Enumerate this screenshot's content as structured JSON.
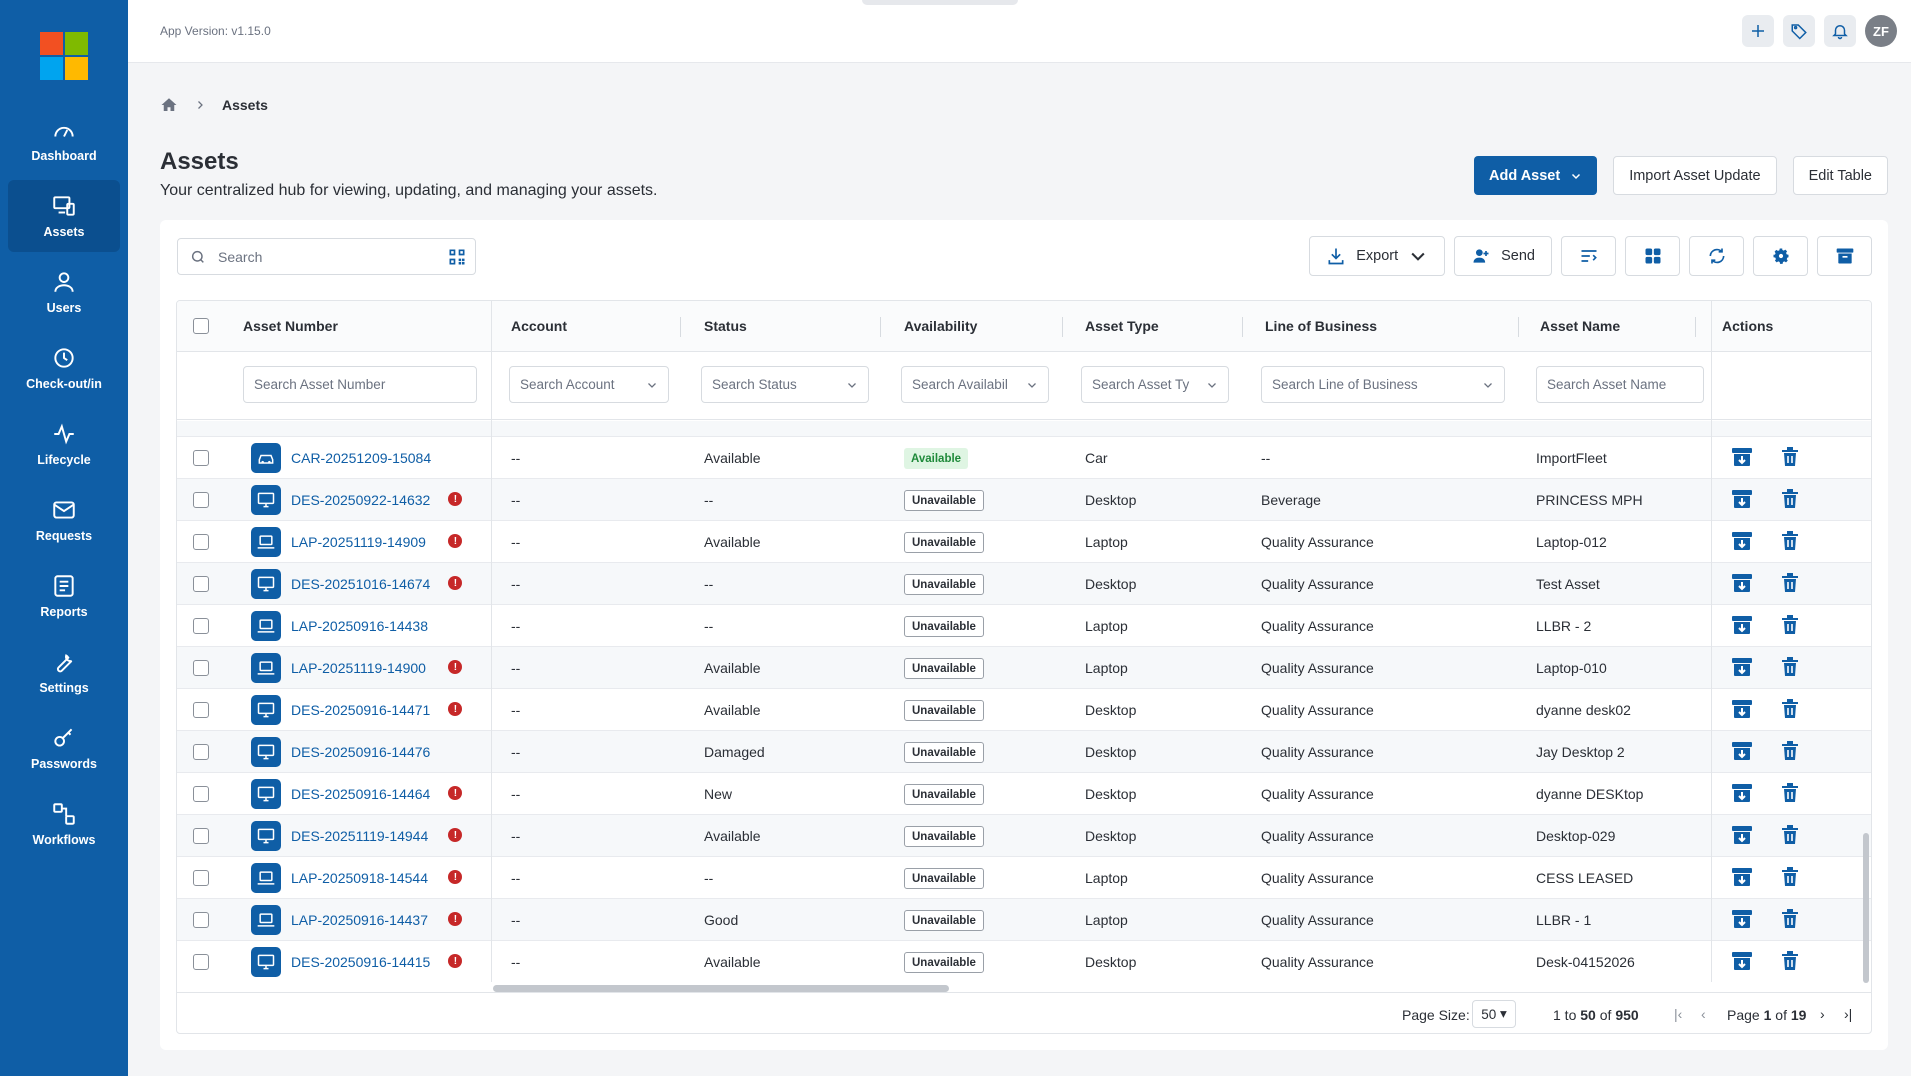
{
  "app": {
    "version": "App Version: v1.15.0",
    "user_initials": "ZF"
  },
  "sidebar": {
    "items": [
      {
        "label": "Dashboard",
        "icon": "dashboard-icon"
      },
      {
        "label": "Assets",
        "icon": "assets-icon",
        "active": true
      },
      {
        "label": "Users",
        "icon": "users-icon"
      },
      {
        "label": "Check-out/in",
        "icon": "clock-icon"
      },
      {
        "label": "Lifecycle",
        "icon": "pulse-icon"
      },
      {
        "label": "Requests",
        "icon": "mail-icon"
      },
      {
        "label": "Reports",
        "icon": "report-icon"
      },
      {
        "label": "Settings",
        "icon": "wrench-icon"
      },
      {
        "label": "Passwords",
        "icon": "key-icon"
      },
      {
        "label": "Workflows",
        "icon": "workflow-icon"
      }
    ]
  },
  "breadcrumb": {
    "current": "Assets"
  },
  "header": {
    "title": "Assets",
    "subtitle": "Your centralized hub for viewing, updating, and managing your assets.",
    "add_asset": "Add Asset",
    "import_update": "Import Asset Update",
    "edit_table": "Edit Table"
  },
  "toolbar": {
    "search_placeholder": "Search",
    "export": "Export",
    "send": "Send"
  },
  "table": {
    "columns": [
      "Asset Number",
      "Account",
      "Status",
      "Availability",
      "Asset Type",
      "Line of Business",
      "Asset Name",
      "Actions"
    ],
    "filters": [
      "Search Asset Number",
      "Search Account",
      "Search Status",
      "Search Availabil",
      "Search Asset Ty",
      "Search Line of Business",
      "Search Asset Name"
    ],
    "rows": [
      {
        "number": "CAR-20251209-15084",
        "type_icon": "car",
        "warn": false,
        "account": "--",
        "status": "Available",
        "availability": "Available",
        "asset_type": "Car",
        "lob": "--",
        "name": "ImportFleet"
      },
      {
        "number": "DES-20250922-14632",
        "type_icon": "desktop",
        "warn": true,
        "account": "--",
        "status": "--",
        "availability": "Unavailable",
        "asset_type": "Desktop",
        "lob": "Beverage",
        "name": "PRINCESS MPH"
      },
      {
        "number": "LAP-20251119-14909",
        "type_icon": "laptop",
        "warn": true,
        "account": "--",
        "status": "Available",
        "availability": "Unavailable",
        "asset_type": "Laptop",
        "lob": "Quality Assurance",
        "name": "Laptop-012"
      },
      {
        "number": "DES-20251016-14674",
        "type_icon": "desktop",
        "warn": true,
        "account": "--",
        "status": "--",
        "availability": "Unavailable",
        "asset_type": "Desktop",
        "lob": "Quality Assurance",
        "name": "Test Asset"
      },
      {
        "number": "LAP-20250916-14438",
        "type_icon": "laptop",
        "warn": false,
        "account": "--",
        "status": "--",
        "availability": "Unavailable",
        "asset_type": "Laptop",
        "lob": "Quality Assurance",
        "name": "LLBR - 2"
      },
      {
        "number": "LAP-20251119-14900",
        "type_icon": "laptop",
        "warn": true,
        "account": "--",
        "status": "Available",
        "availability": "Unavailable",
        "asset_type": "Laptop",
        "lob": "Quality Assurance",
        "name": "Laptop-010"
      },
      {
        "number": "DES-20250916-14471",
        "type_icon": "desktop",
        "warn": true,
        "account": "--",
        "status": "Available",
        "availability": "Unavailable",
        "asset_type": "Desktop",
        "lob": "Quality Assurance",
        "name": "dyanne desk02"
      },
      {
        "number": "DES-20250916-14476",
        "type_icon": "desktop",
        "warn": false,
        "account": "--",
        "status": "Damaged",
        "availability": "Unavailable",
        "asset_type": "Desktop",
        "lob": "Quality Assurance",
        "name": "Jay Desktop 2"
      },
      {
        "number": "DES-20250916-14464",
        "type_icon": "desktop",
        "warn": true,
        "account": "--",
        "status": "New",
        "availability": "Unavailable",
        "asset_type": "Desktop",
        "lob": "Quality Assurance",
        "name": "dyanne DESKtop"
      },
      {
        "number": "DES-20251119-14944",
        "type_icon": "desktop",
        "warn": true,
        "account": "--",
        "status": "Available",
        "availability": "Unavailable",
        "asset_type": "Desktop",
        "lob": "Quality Assurance",
        "name": "Desktop-029"
      },
      {
        "number": "LAP-20250918-14544",
        "type_icon": "laptop",
        "warn": true,
        "account": "--",
        "status": "--",
        "availability": "Unavailable",
        "asset_type": "Laptop",
        "lob": "Quality Assurance",
        "name": "CESS LEASED"
      },
      {
        "number": "LAP-20250916-14437",
        "type_icon": "laptop",
        "warn": true,
        "account": "--",
        "status": "Good",
        "availability": "Unavailable",
        "asset_type": "Laptop",
        "lob": "Quality Assurance",
        "name": "LLBR - 1"
      },
      {
        "number": "DES-20250916-14415",
        "type_icon": "desktop",
        "warn": true,
        "account": "--",
        "status": "Available",
        "availability": "Unavailable",
        "asset_type": "Desktop",
        "lob": "Quality Assurance",
        "name": "Desk-04152026"
      }
    ]
  },
  "pager": {
    "page_size_label": "Page Size:",
    "page_size": "50",
    "range_from": "1",
    "range_to": "50",
    "total": "950",
    "page_label": "Page",
    "page": "1",
    "of_label": "of",
    "pages": "19"
  }
}
